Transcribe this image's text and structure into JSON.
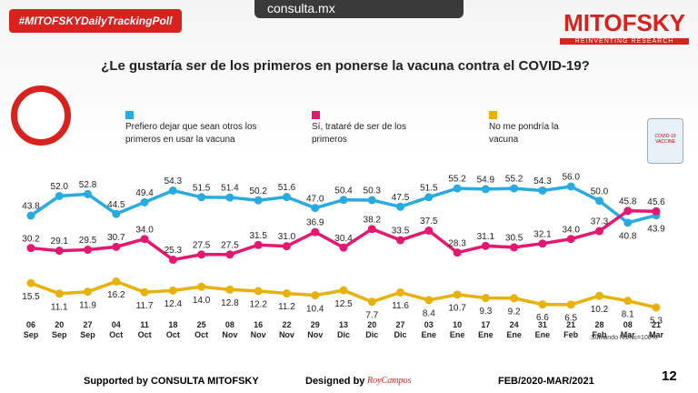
{
  "header": {
    "hashtag": "#MITOFSKYDailyTrackingPoll",
    "site": "consulta.mx",
    "brand": "MITOFSKY",
    "tagline": "REINVENTING RESEARCH",
    "vial": "COVID-19 VACCINE"
  },
  "chart_data": {
    "type": "line",
    "title": "¿Le gustaría ser de los primeros en ponerse la vacuna contra el COVID-19?",
    "categories": [
      "06 Sep",
      "20 Sep",
      "27 Sep",
      "04 Oct",
      "11 Oct",
      "18 Oct",
      "25 Oct",
      "08 Nov",
      "16 Nov",
      "22 Nov",
      "29 Nov",
      "13 Dic",
      "20 Dic",
      "27 Dic",
      "03 Ene",
      "10 Ene",
      "17 Ene",
      "24 Ene",
      "31 Ene",
      "21 Feb",
      "28 Feb",
      "08 Mar",
      "21 Mar"
    ],
    "series": [
      {
        "name": "Prefiero dejar que sean otros los primeros  en usar la vacuna",
        "color": "#29abe2",
        "values": [
          43.8,
          52.0,
          52.8,
          44.5,
          49.4,
          54.3,
          51.5,
          51.4,
          50.2,
          51.6,
          47.0,
          50.4,
          50.3,
          47.5,
          51.5,
          55.2,
          54.9,
          55.2,
          54.3,
          56.0,
          50.0,
          40.8,
          43.9
        ],
        "value_labels": [
          "43.8",
          "52.0",
          "52.8",
          "44.5",
          "49.4",
          "54.3",
          "51.5",
          "51.4",
          "50.2",
          "51.6",
          "47.0",
          "50.4",
          "50.3",
          "47.5",
          "51.5",
          "55.2",
          "54.9",
          "55.2",
          "54.3",
          "56.0",
          "50.0",
          "40.8",
          "43.9"
        ]
      },
      {
        "name": "Sí, trataré de ser de los primeros",
        "color": "#e5176f",
        "values": [
          30.2,
          29.1,
          29.5,
          30.7,
          34.0,
          25.3,
          27.5,
          27.5,
          31.5,
          31.0,
          36.9,
          30.4,
          38.2,
          33.5,
          37.5,
          28.3,
          31.1,
          30.5,
          32.1,
          34.0,
          37.3,
          45.8,
          45.6
        ],
        "value_labels": [
          "30.2",
          "29.1",
          "29.5",
          "30.7",
          "34.0",
          "25.3",
          "27.5",
          "27.5",
          "31.5",
          "31.0",
          "36.9",
          "30.4",
          "38.2",
          "33.5",
          "37.5",
          "28.3",
          "31.1",
          "30.5",
          "32.1",
          "34.0",
          "37.3",
          "45.8",
          "45.6"
        ]
      },
      {
        "name": "No me pondría la vacuna",
        "color": "#e8b10c",
        "values": [
          15.5,
          11.1,
          11.9,
          16.2,
          11.7,
          12.4,
          14.0,
          12.8,
          12.2,
          11.2,
          10.4,
          12.5,
          7.7,
          11.6,
          8.4,
          10.7,
          9.3,
          9.2,
          6.6,
          6.5,
          10.2,
          8.1,
          5.3
        ],
        "value_labels": [
          "15.5",
          "11.1",
          "11.9",
          "16.2",
          "11.7",
          "12.4",
          "14.0",
          "12.8",
          "12.2",
          "11.2",
          "10.4",
          "12.5",
          "7.7",
          "11.6",
          "8.4",
          "10.7",
          "9.3",
          "9.2",
          "6.6",
          "6.5",
          "10.2",
          "8.1",
          "5.3"
        ]
      }
    ],
    "note": "Sumando Ns/Nc=100%"
  },
  "footer": {
    "supported": "Supported by  CONSULTA  MITOFSKY",
    "designed": "Designed by",
    "designer": "RoyCampos",
    "period": "FEB/2020-MAR/2021",
    "page": "12"
  }
}
